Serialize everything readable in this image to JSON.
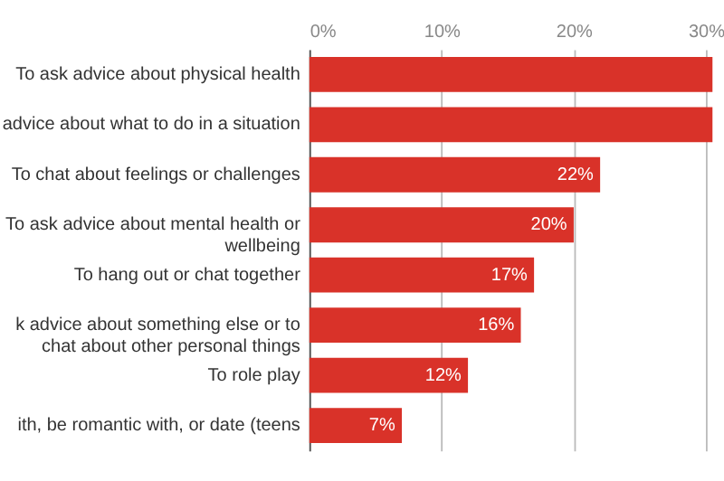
{
  "chart_data": {
    "type": "bar",
    "orientation": "horizontal",
    "categories": [
      "To ask advice about physical health",
      "advice about what to do in a situation",
      "To chat about feelings or challenges",
      "To ask advice about mental health or\nwellbeing",
      "To hang out or chat together",
      "k advice about something else or to\nchat about other personal things",
      "To role play",
      "ith, be romantic with, or date (teens"
    ],
    "values": [
      30.5,
      30.5,
      22,
      20,
      17,
      16,
      12,
      7
    ],
    "value_labels": [
      null,
      null,
      "22%",
      "20%",
      "17%",
      "16%",
      "12%",
      "7%"
    ],
    "color": "#d93229",
    "xlim": [
      0,
      30.5
    ],
    "xticks": [
      {
        "value": 0,
        "label": "0%"
      },
      {
        "value": 10,
        "label": "10%"
      },
      {
        "value": 20,
        "label": "20%"
      },
      {
        "value": 30,
        "label": "30%"
      }
    ],
    "grid": "x"
  }
}
